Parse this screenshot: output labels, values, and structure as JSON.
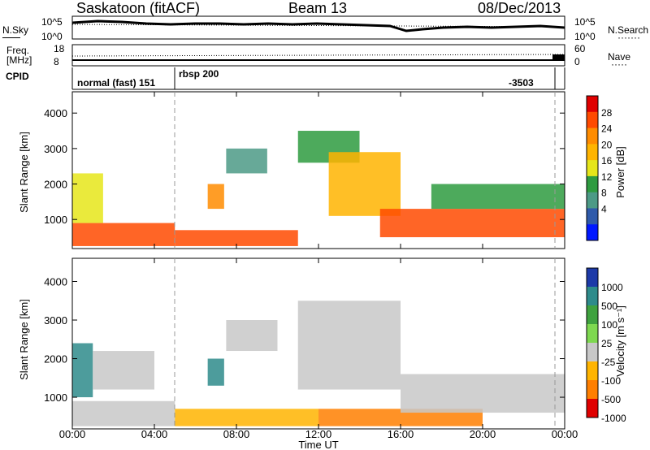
{
  "header": {
    "radar": "Saskatoon (fitACF)",
    "beam": "Beam 13",
    "date": "08/Dec/2013"
  },
  "noise_panel": {
    "left_label": "N.Sky",
    "right_label": "N.Search",
    "right_marker": "·······",
    "left_ticks": [
      "10^5",
      "10^0"
    ],
    "right_ticks": [
      "10^5",
      "10^0"
    ]
  },
  "freq_panel": {
    "left_label_line1": "Freq.",
    "left_label_line2": "[MHz]",
    "left_ticks": [
      "18",
      "8"
    ],
    "right_label": "Nave",
    "right_marker": "·····",
    "right_ticks": [
      "60",
      "0"
    ]
  },
  "cpid_panel": {
    "label": "CPID",
    "entries": [
      "normal (fast) 151",
      "rbsp 200",
      "-3503"
    ]
  },
  "power_colorbar": {
    "label": "Power [dB]",
    "ticks": [
      "28",
      "24",
      "20",
      "16",
      "12",
      "8",
      "4"
    ],
    "colors": [
      "#e00000",
      "#ff4a00",
      "#ff8c00",
      "#ffb400",
      "#e6e61a",
      "#2e9b40",
      "#4c9a86",
      "#2f5aaa",
      "#0018ff"
    ]
  },
  "velocity_colorbar": {
    "label": "Velocity [m s⁻¹]",
    "ticks": [
      "1000",
      "500",
      "100",
      "25",
      "-25",
      "-100",
      "-500",
      "-1000"
    ],
    "colors": [
      "#1d3aa8",
      "#2e8b8b",
      "#3fa23f",
      "#7ed850",
      "#c8c8c8",
      "#ffb400",
      "#ff7f00",
      "#e00000"
    ]
  },
  "x_axis": {
    "title": "Time UT",
    "ticks": [
      "00:00",
      "04:00",
      "08:00",
      "12:00",
      "16:00",
      "20:00",
      "00:00"
    ]
  },
  "chart_data": [
    {
      "type": "heatmap",
      "name": "power",
      "xlabel": "Time UT",
      "ylabel": "Slant Range [km]",
      "xlim": [
        0,
        24
      ],
      "ylim": [
        180,
        4600
      ],
      "yticks": [
        "1000",
        "2000",
        "3000",
        "4000"
      ],
      "colorbar_label": "Power [dB]",
      "clim": [
        0,
        30
      ],
      "regions": [
        {
          "t0": 0.0,
          "t1": 5.0,
          "r0": 250,
          "r1": 900,
          "value": 26
        },
        {
          "t0": 0.0,
          "t1": 1.5,
          "r0": 900,
          "r1": 2300,
          "value": 14
        },
        {
          "t0": 5.0,
          "t1": 11.0,
          "r0": 250,
          "r1": 700,
          "value": 26
        },
        {
          "t0": 6.6,
          "t1": 7.4,
          "r0": 1300,
          "r1": 2000,
          "value": 22
        },
        {
          "t0": 7.5,
          "t1": 9.5,
          "r0": 2300,
          "r1": 3000,
          "value": 10
        },
        {
          "t0": 11.0,
          "t1": 14.0,
          "r0": 2600,
          "r1": 3500,
          "value": 12
        },
        {
          "t0": 12.5,
          "t1": 16.0,
          "r0": 1100,
          "r1": 2900,
          "value": 18
        },
        {
          "t0": 15.0,
          "t1": 24.0,
          "r0": 500,
          "r1": 1300,
          "value": 26
        },
        {
          "t0": 17.5,
          "t1": 24.0,
          "r0": 1300,
          "r1": 2000,
          "value": 12
        }
      ]
    },
    {
      "type": "heatmap",
      "name": "velocity",
      "xlabel": "Time UT",
      "ylabel": "Slant Range [km]",
      "xlim": [
        0,
        24
      ],
      "ylim": [
        180,
        4600
      ],
      "yticks": [
        "1000",
        "2000",
        "3000",
        "4000"
      ],
      "colorbar_label": "Velocity [m s⁻¹]",
      "regions": [
        {
          "t0": 0.0,
          "t1": 1.0,
          "r0": 1000,
          "r1": 2400,
          "value": 600
        },
        {
          "t0": 0.0,
          "t1": 5.0,
          "r0": 250,
          "r1": 900,
          "value": 20
        },
        {
          "t0": 1.0,
          "t1": 4.0,
          "r0": 1200,
          "r1": 2200,
          "value": 0
        },
        {
          "t0": 5.0,
          "t1": 12.0,
          "r0": 250,
          "r1": 700,
          "value": -60
        },
        {
          "t0": 6.6,
          "t1": 7.4,
          "r0": 1300,
          "r1": 2000,
          "value": 400
        },
        {
          "t0": 7.5,
          "t1": 10.0,
          "r0": 2200,
          "r1": 3000,
          "value": 0
        },
        {
          "t0": 11.0,
          "t1": 16.0,
          "r0": 1200,
          "r1": 3500,
          "value": 0
        },
        {
          "t0": 12.0,
          "t1": 20.0,
          "r0": 250,
          "r1": 700,
          "value": -150
        },
        {
          "t0": 16.0,
          "t1": 24.0,
          "r0": 600,
          "r1": 1600,
          "value": 0
        }
      ]
    }
  ]
}
